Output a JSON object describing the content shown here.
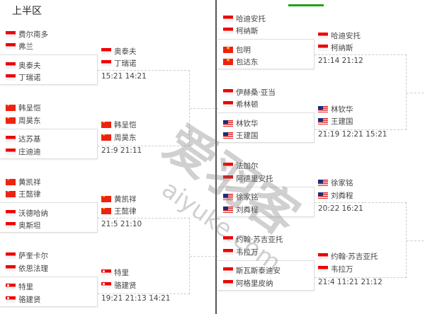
{
  "header": {
    "title": "上半区"
  },
  "watermark": {
    "logo_text": "爱羽客",
    "url_text": "aiyuke.com"
  },
  "left": {
    "matches": [
      {
        "top": [
          {
            "name": "费尔南多",
            "flag": "ina"
          },
          {
            "name": "弗兰",
            "flag": "ina"
          }
        ],
        "bottom": [
          {
            "name": "奥泰夫",
            "flag": "ina"
          },
          {
            "name": "丁瑞诺",
            "flag": "ina"
          }
        ],
        "winner": [
          {
            "name": "奥泰夫",
            "flag": "ina"
          },
          {
            "name": "丁瑞诺",
            "flag": "ina"
          }
        ],
        "score": "15:21  14:21"
      },
      {
        "top": [
          {
            "name": "韩呈恺",
            "flag": "chn"
          },
          {
            "name": "周昊东",
            "flag": "chn"
          }
        ],
        "bottom": [
          {
            "name": "达苏基",
            "flag": "ina"
          },
          {
            "name": "庄迪迪",
            "flag": "ina"
          }
        ],
        "winner": [
          {
            "name": "韩呈恺",
            "flag": "chn"
          },
          {
            "name": "周昊东",
            "flag": "chn"
          }
        ],
        "score": "21:9  21:11"
      },
      {
        "top": [
          {
            "name": "黄凯祥",
            "flag": "chn"
          },
          {
            "name": "王懿律",
            "flag": "chn"
          }
        ],
        "bottom": [
          {
            "name": "沃德哈纳",
            "flag": "ina"
          },
          {
            "name": "奥斯坦",
            "flag": "ina"
          }
        ],
        "winner": [
          {
            "name": "黄凯祥",
            "flag": "chn"
          },
          {
            "name": "王懿律",
            "flag": "chn"
          }
        ],
        "score": "21:5  21:10"
      },
      {
        "top": [
          {
            "name": "萨奎卡尔",
            "flag": "ina"
          },
          {
            "name": "依思法理",
            "flag": "ina"
          }
        ],
        "bottom": [
          {
            "name": "特里",
            "flag": "sgp"
          },
          {
            "name": "骆建贤",
            "flag": "sgp"
          }
        ],
        "winner": [
          {
            "name": "特里",
            "flag": "sgp"
          },
          {
            "name": "骆建贤",
            "flag": "sgp"
          }
        ],
        "score": "19:21  21:13  14:21"
      }
    ]
  },
  "right": {
    "matches": [
      {
        "top": [
          {
            "name": "哈迪安托",
            "flag": "ina"
          },
          {
            "name": "柯纳斯",
            "flag": "ina"
          }
        ],
        "bottom": [
          {
            "name": "包明",
            "flag": "vie"
          },
          {
            "name": "包达东",
            "flag": "vie"
          }
        ],
        "winner": [
          {
            "name": "哈迪安托",
            "flag": "ina"
          },
          {
            "name": "柯纳斯",
            "flag": "ina"
          }
        ],
        "score": "21:14  21:12"
      },
      {
        "top": [
          {
            "name": "伊赫桑·亚当",
            "flag": "ina"
          },
          {
            "name": "希林顿",
            "flag": "ina"
          }
        ],
        "bottom": [
          {
            "name": "林钦华",
            "flag": "mas"
          },
          {
            "name": "王建国",
            "flag": "mas"
          }
        ],
        "winner": [
          {
            "name": "林钦华",
            "flag": "mas"
          },
          {
            "name": "王建国",
            "flag": "mas"
          }
        ],
        "score": "21:19  12:21  15:21"
      },
      {
        "top": [
          {
            "name": "法加尔",
            "flag": "ina"
          },
          {
            "name": "阿德里安托",
            "flag": "ina"
          }
        ],
        "bottom": [
          {
            "name": "徐家铭",
            "flag": "mas"
          },
          {
            "name": "刘粦程",
            "flag": "mas"
          }
        ],
        "winner": [
          {
            "name": "徐家铭",
            "flag": "mas"
          },
          {
            "name": "刘粦程",
            "flag": "mas"
          }
        ],
        "score": "20:22  16:21"
      },
      {
        "top": [
          {
            "name": "约翰·苏吉亚托",
            "flag": "ina"
          },
          {
            "name": "韦拉万",
            "flag": "ina"
          }
        ],
        "bottom": [
          {
            "name": "斯瓦斯泰迪安",
            "flag": "ina"
          },
          {
            "name": "阿格里皮纳",
            "flag": "ina"
          }
        ],
        "winner": [
          {
            "name": "约翰·苏吉亚托",
            "flag": "ina"
          },
          {
            "name": "韦拉万",
            "flag": "ina"
          }
        ],
        "score": "21:4  11:21  21:12"
      }
    ]
  }
}
